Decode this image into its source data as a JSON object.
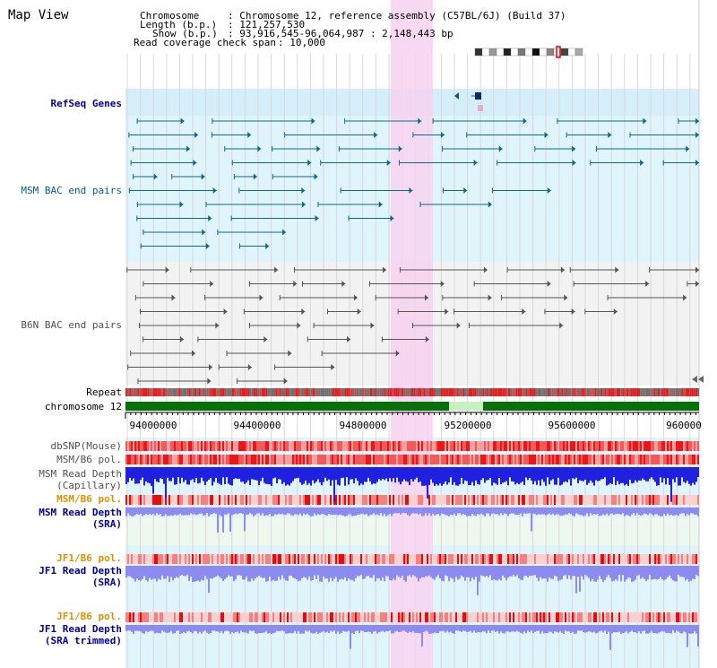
{
  "title": "Map View",
  "info": {
    "chromosome_label": "Chromosome",
    "chromosome_value": ": Chromosome 12, reference assembly (C57BL/6J) (Build 37)",
    "length_label": "Length (b.p.)",
    "length_value": ": 121,257,530",
    "show_label": "Show (b.p.)",
    "show_value": ": 93,916,545-96,064,987 : 2,148,443 bp",
    "span_label": "Read coverage check span",
    "span_value": ": 10,000"
  },
  "tracks": {
    "refseq": "RefSeq Genes",
    "msm_bac": "MSM BAC end pairs",
    "b6n_bac": "B6N BAC end pairs",
    "repeat": "Repeat",
    "chromosome": "chromosome 12",
    "dbsnp": "dbSNP(Mouse)",
    "msm_b6_pol": "MSM/B6 pol.",
    "msm_read_depth_cap_1": "MSM Read Depth",
    "msm_read_depth_cap_2": "(Capillary)",
    "msm_b6_pol_2": "MSM/B6 pol.",
    "msm_read_depth_sra_1": "MSM Read Depth",
    "msm_read_depth_sra_2": "(SRA)",
    "jf1_b6_pol": "JF1/B6 pol.",
    "jf1_read_depth_sra_1": "JF1 Read Depth",
    "jf1_read_depth_sra_2": "(SRA)",
    "jf1_b6_pol_2": "JF1/B6 pol.",
    "jf1_read_depth_trim_1": "JF1 Read Depth",
    "jf1_read_depth_trim_2": "(SRA trimmed)"
  },
  "axis": {
    "ticks": [
      "94000000",
      "94400000",
      "94800000",
      "95200000",
      "95600000",
      "960000"
    ]
  },
  "colors": {
    "track_bg_blue": "#e0f4fb",
    "track_bg_gray": "#f2f2f2",
    "highlight": "#f8d2f0",
    "chromosome": "#087008",
    "gap": "#c8f0c0",
    "snp_red": "#f04040",
    "depth_blue": "#2020e0",
    "depth_light": "#8c8cf0"
  }
}
